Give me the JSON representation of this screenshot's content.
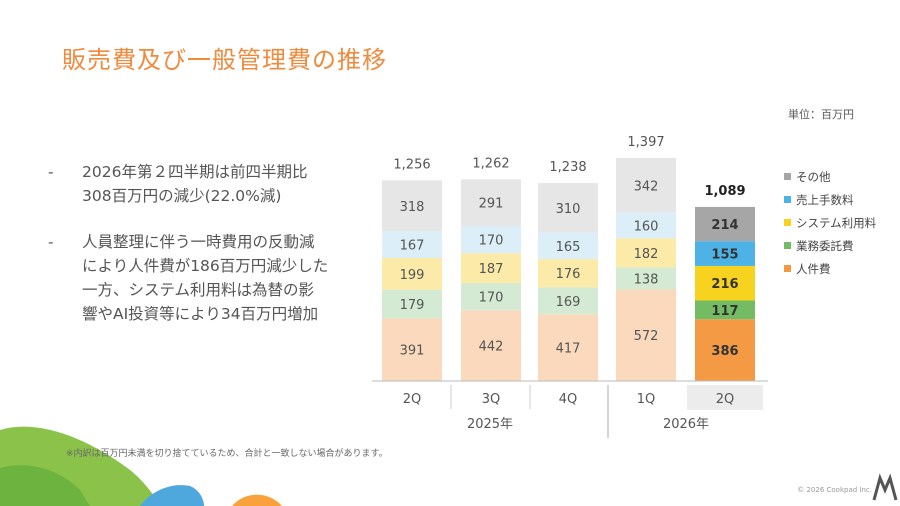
{
  "title": "販売費及び一般管理費の推移",
  "unit": "単位：百万円",
  "bullets": [
    {
      "line1": "2026年第２四半期は前四半期比",
      "line2": "308百万円の減少(22.0%減)"
    },
    {
      "line1": "人員整理に伴う一時費用の反動減",
      "line2": "により人件費が186百万円減少した",
      "line3": "一方、システム利用料は為替の影",
      "line4": "響やAI投資等により34百万円増加"
    }
  ],
  "bullet_marker": "-",
  "footnote": "※内訳は百万円未満を切り捨てているため、合計と一致しない場合があります。",
  "copyright": "© 2026 Cookpad Inc.",
  "colors": {
    "title": "#f08a3c",
    "other_light": "#e6e6e6",
    "other_dark": "#a6a6a6",
    "sales_fee_light": "#dceef8",
    "sales_fee_dark": "#4db3e6",
    "system_light": "#fbeaa8",
    "system_dark": "#f7d21e",
    "outsourcing_light": "#d5ead2",
    "outsourcing_dark": "#74bc63",
    "personnel_light": "#fbd9bd",
    "personnel_dark": "#f49a45"
  },
  "chart_data": {
    "type": "bar",
    "stacked": true,
    "categories": [
      "2Q",
      "3Q",
      "4Q",
      "1Q",
      "2Q"
    ],
    "groups": [
      {
        "label": "2025年",
        "categories": [
          "2Q",
          "3Q",
          "4Q"
        ]
      },
      {
        "label": "2026年",
        "categories": [
          "1Q",
          "2Q"
        ]
      }
    ],
    "highlighted_category_index": 4,
    "series": [
      {
        "name": "人件費",
        "values": [
          391,
          442,
          417,
          572,
          386
        ]
      },
      {
        "name": "業務委託費",
        "values": [
          179,
          170,
          169,
          138,
          117
        ]
      },
      {
        "name": "システム利用料",
        "values": [
          199,
          187,
          176,
          182,
          216
        ]
      },
      {
        "name": "売上手数料",
        "values": [
          167,
          170,
          165,
          160,
          155
        ]
      },
      {
        "name": "その他",
        "values": [
          318,
          291,
          310,
          342,
          214
        ]
      }
    ],
    "totals": [
      "1,256",
      "1,262",
      "1,238",
      "1,397",
      "1,089"
    ],
    "legend_position": "right",
    "grid": false
  }
}
